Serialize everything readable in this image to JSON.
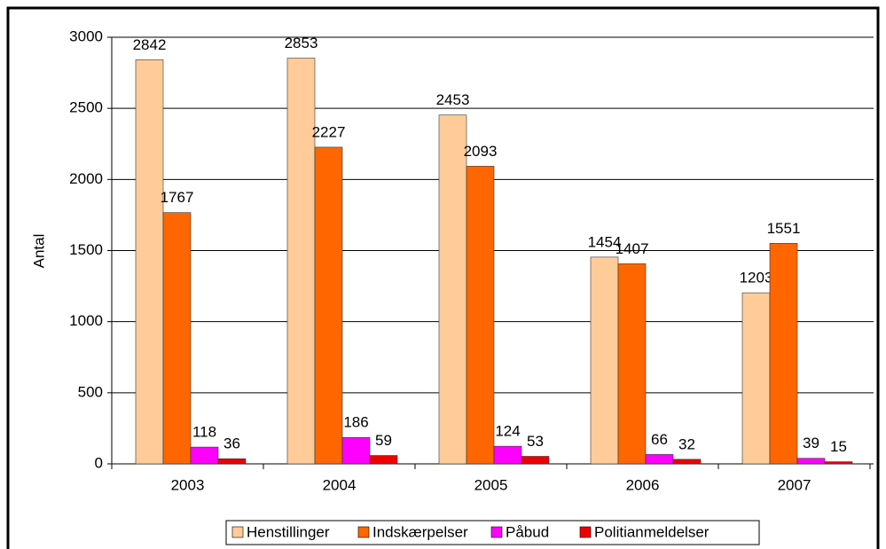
{
  "chart_data": {
    "type": "bar",
    "y_label": "Antal",
    "categories": [
      "2003",
      "2004",
      "2005",
      "2006",
      "2007"
    ],
    "series": [
      {
        "name": "Henstillinger",
        "color": "#FFCC99",
        "values": [
          2842,
          2853,
          2453,
          1454,
          1203
        ]
      },
      {
        "name": "Indskærpelser",
        "color": "#FF6600",
        "values": [
          1767,
          2227,
          2093,
          1407,
          1551
        ]
      },
      {
        "name": "Påbud",
        "color": "#FF00FF",
        "values": [
          118,
          186,
          124,
          66,
          39
        ]
      },
      {
        "name": "Politianmeldelser",
        "color": "#EE0000",
        "values": [
          36,
          59,
          53,
          32,
          15
        ]
      }
    ],
    "ylim": [
      0,
      3000
    ],
    "yticks": [
      0,
      500,
      1000,
      1500,
      2000,
      2500,
      3000
    ],
    "grid": true,
    "legend": "bottom"
  }
}
